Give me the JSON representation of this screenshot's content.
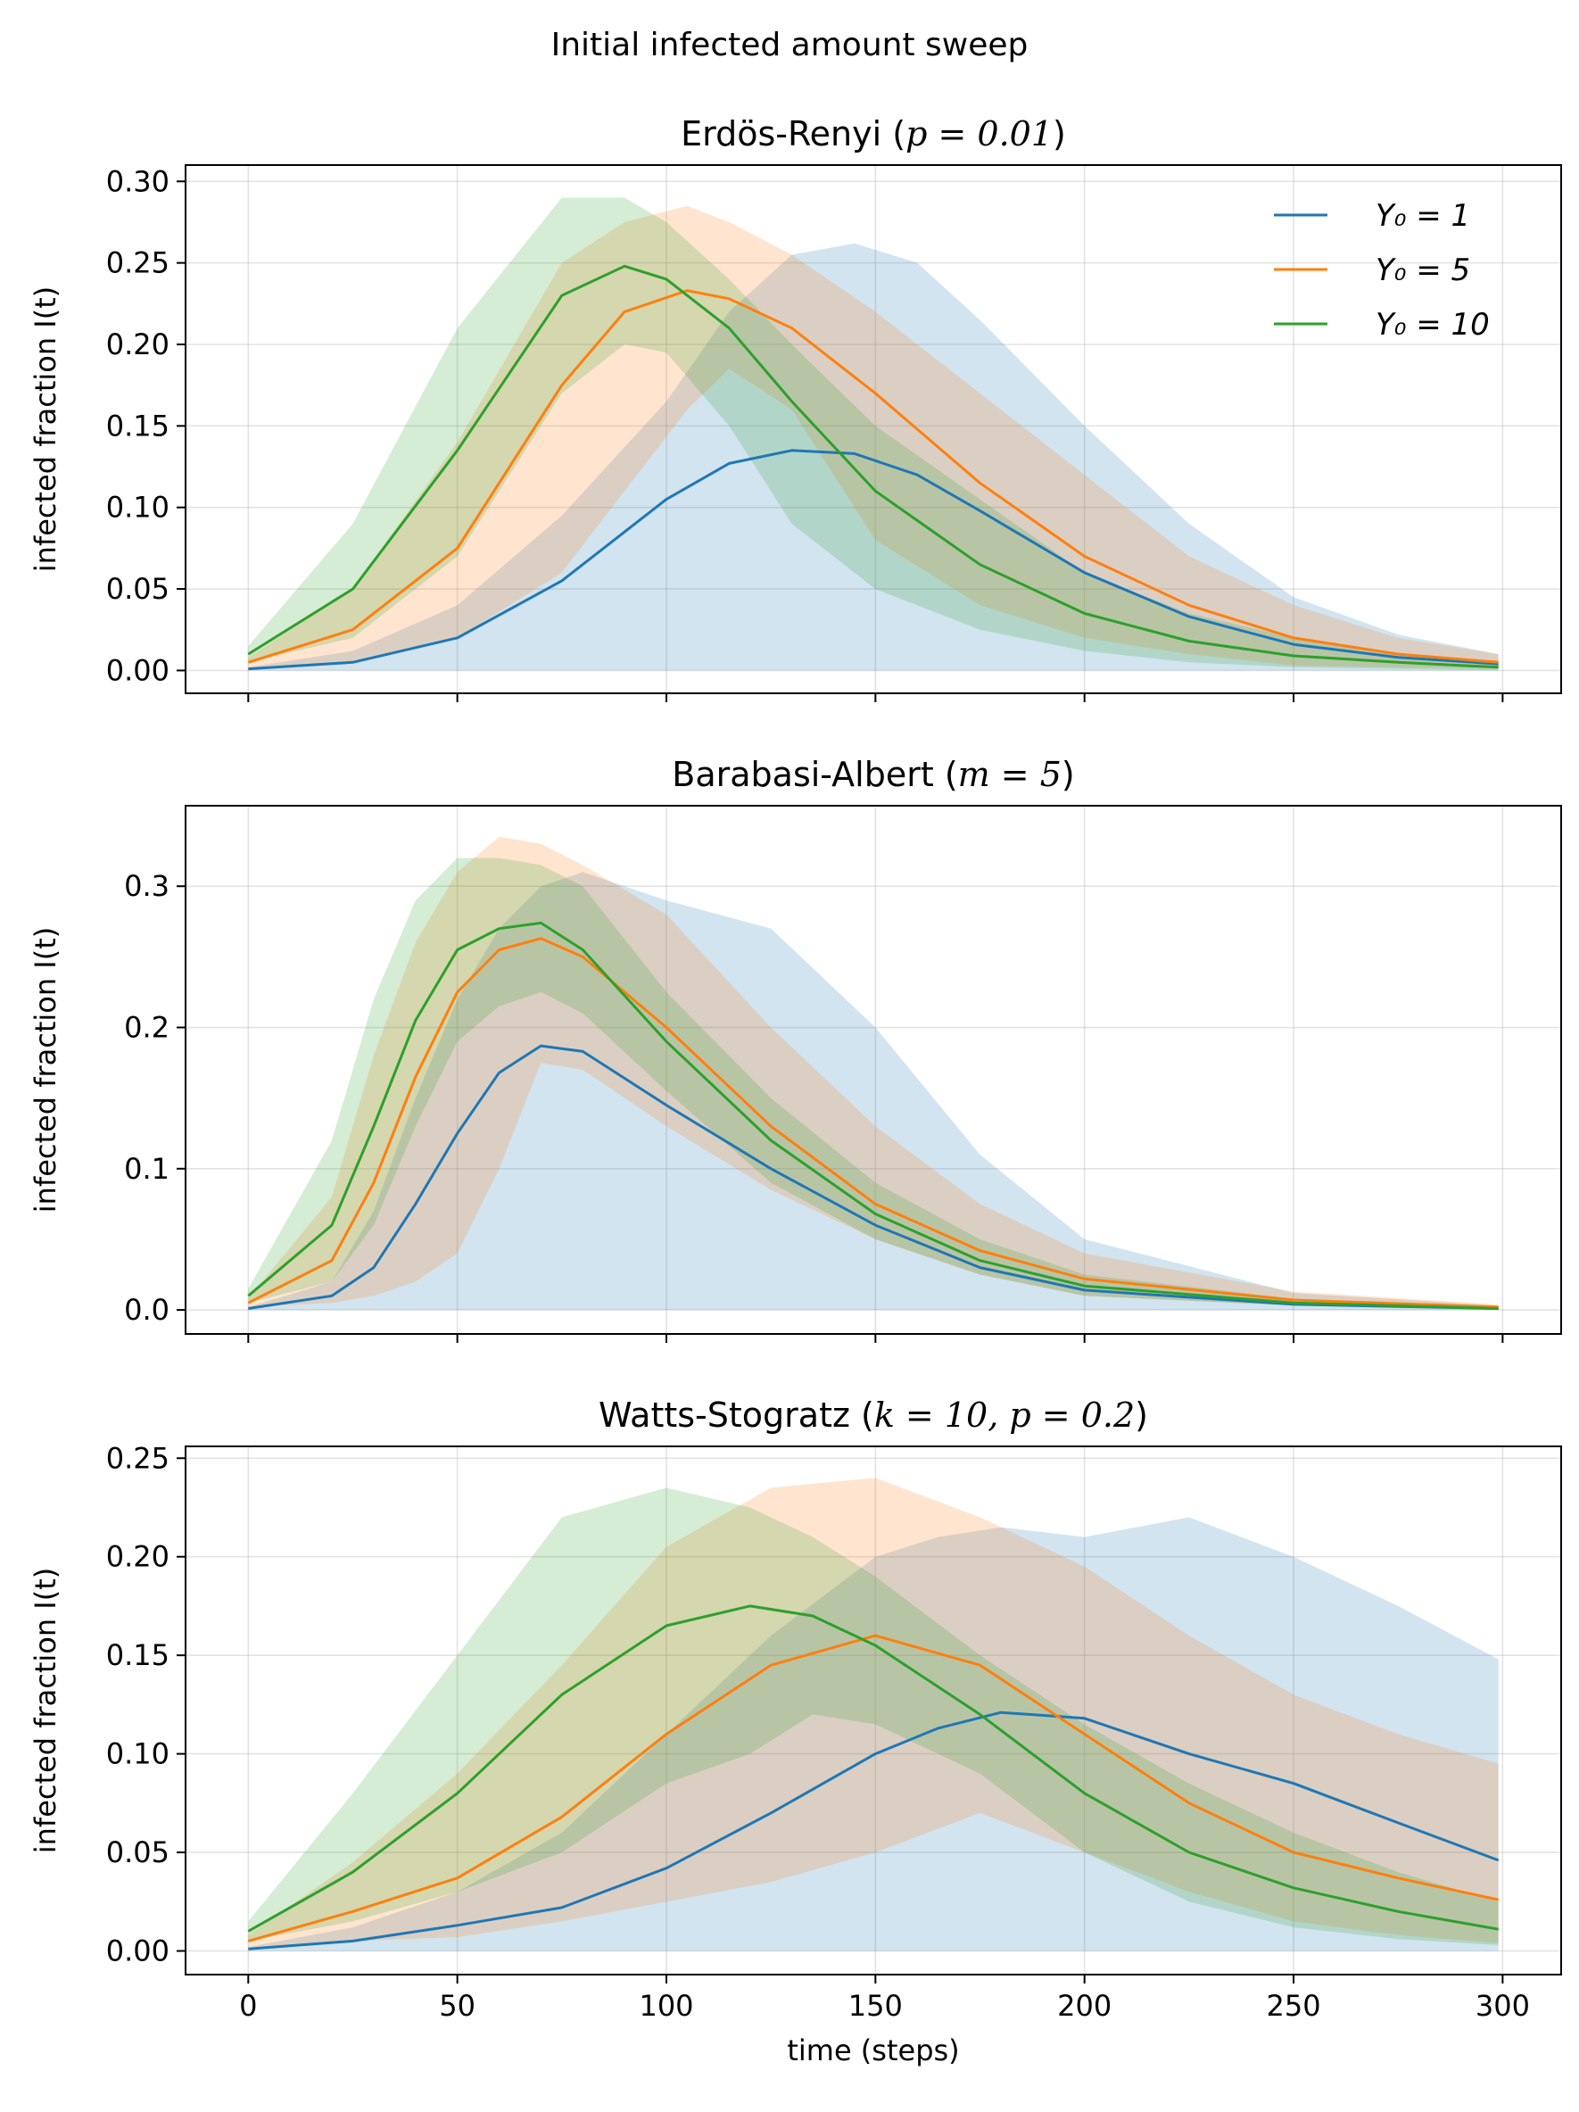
{
  "suptitle": "Initial infected amount sweep",
  "chart_data": [
    {
      "type": "line",
      "title": "Erdös-Renyi (p = 0.01)",
      "title_parts": {
        "pre": "Erdös-Renyi (",
        "math": "p = 0.01",
        "post": ")"
      },
      "xlabel": "",
      "ylabel": "infected fraction I(t)",
      "xlim": [
        -15,
        314
      ],
      "ylim": [
        -0.014,
        0.31
      ],
      "xticks": [
        0,
        50,
        100,
        150,
        200,
        250,
        300
      ],
      "xtick_labels_shown": false,
      "yticks": [
        0.0,
        0.05,
        0.1,
        0.15,
        0.2,
        0.25,
        0.3
      ],
      "ytick_labels": [
        "0.00",
        "0.05",
        "0.10",
        "0.15",
        "0.20",
        "0.25",
        "0.30"
      ],
      "grid": true,
      "legend": {
        "placement": "top-right",
        "entries": [
          "Y₀ = 1",
          "Y₀ = 5",
          "Y₀ = 10"
        ]
      },
      "series": [
        {
          "name": "Y₀ = 1",
          "color": "#1f77b4",
          "x": [
            0,
            25,
            50,
            75,
            100,
            115,
            130,
            145,
            160,
            175,
            200,
            225,
            250,
            275,
            299
          ],
          "values": [
            0.001,
            0.005,
            0.02,
            0.055,
            0.105,
            0.127,
            0.135,
            0.133,
            0.12,
            0.098,
            0.06,
            0.033,
            0.016,
            0.008,
            0.004
          ],
          "lower": [
            0.0,
            0.0,
            0.0,
            0.0,
            0.0,
            0.0,
            0.0,
            0.0,
            0.0,
            0.0,
            0.0,
            0.0,
            0.0,
            0.0,
            0.0
          ],
          "upper": [
            0.002,
            0.012,
            0.04,
            0.095,
            0.165,
            0.22,
            0.255,
            0.262,
            0.25,
            0.215,
            0.15,
            0.09,
            0.045,
            0.022,
            0.01
          ]
        },
        {
          "name": "Y₀ = 5",
          "color": "#ff7f0e",
          "x": [
            0,
            25,
            50,
            75,
            90,
            105,
            115,
            130,
            150,
            175,
            200,
            225,
            250,
            275,
            299
          ],
          "values": [
            0.005,
            0.025,
            0.075,
            0.175,
            0.22,
            0.233,
            0.228,
            0.21,
            0.17,
            0.115,
            0.07,
            0.04,
            0.02,
            0.01,
            0.005
          ],
          "lower": [
            0.002,
            0.005,
            0.02,
            0.06,
            0.11,
            0.16,
            0.185,
            0.16,
            0.08,
            0.04,
            0.02,
            0.01,
            0.003,
            0.002,
            0.001
          ],
          "upper": [
            0.008,
            0.05,
            0.14,
            0.25,
            0.275,
            0.285,
            0.275,
            0.255,
            0.22,
            0.17,
            0.12,
            0.07,
            0.04,
            0.02,
            0.01
          ]
        },
        {
          "name": "Y₀ = 10",
          "color": "#2ca02c",
          "x": [
            0,
            25,
            50,
            75,
            90,
            100,
            115,
            130,
            150,
            175,
            200,
            225,
            250,
            275,
            299
          ],
          "values": [
            0.01,
            0.05,
            0.135,
            0.23,
            0.248,
            0.24,
            0.21,
            0.165,
            0.11,
            0.065,
            0.035,
            0.018,
            0.009,
            0.005,
            0.002
          ],
          "lower": [
            0.005,
            0.02,
            0.07,
            0.17,
            0.2,
            0.195,
            0.15,
            0.09,
            0.05,
            0.025,
            0.012,
            0.005,
            0.002,
            0.001,
            0.0
          ],
          "upper": [
            0.015,
            0.09,
            0.21,
            0.29,
            0.29,
            0.275,
            0.24,
            0.2,
            0.15,
            0.105,
            0.06,
            0.035,
            0.02,
            0.01,
            0.006
          ]
        }
      ]
    },
    {
      "type": "line",
      "title": "Barabasi-Albert (m = 5)",
      "title_parts": {
        "pre": "Barabasi-Albert (",
        "math": "m = 5",
        "post": ")"
      },
      "xlabel": "",
      "ylabel": "infected fraction I(t)",
      "xlim": [
        -15,
        314
      ],
      "ylim": [
        -0.017,
        0.357
      ],
      "xticks": [
        0,
        50,
        100,
        150,
        200,
        250,
        300
      ],
      "xtick_labels_shown": false,
      "yticks": [
        0.0,
        0.1,
        0.2,
        0.3
      ],
      "ytick_labels": [
        "0.0",
        "0.1",
        "0.2",
        "0.3"
      ],
      "grid": true,
      "series": [
        {
          "name": "Y₀ = 1",
          "color": "#1f77b4",
          "x": [
            0,
            20,
            30,
            40,
            50,
            60,
            70,
            80,
            100,
            125,
            150,
            175,
            200,
            250,
            299
          ],
          "values": [
            0.001,
            0.01,
            0.03,
            0.075,
            0.125,
            0.168,
            0.187,
            0.183,
            0.145,
            0.1,
            0.06,
            0.03,
            0.014,
            0.004,
            0.001
          ],
          "lower": [
            0.0,
            0.0,
            0.0,
            0.0,
            0.0,
            0.0,
            0.0,
            0.0,
            0.0,
            0.0,
            0.0,
            0.0,
            0.0,
            0.0,
            0.0
          ],
          "upper": [
            0.002,
            0.02,
            0.07,
            0.15,
            0.22,
            0.27,
            0.3,
            0.31,
            0.29,
            0.27,
            0.2,
            0.11,
            0.05,
            0.012,
            0.003
          ]
        },
        {
          "name": "Y₀ = 5",
          "color": "#ff7f0e",
          "x": [
            0,
            20,
            30,
            40,
            50,
            60,
            70,
            80,
            100,
            125,
            150,
            175,
            200,
            250,
            299
          ],
          "values": [
            0.005,
            0.035,
            0.09,
            0.165,
            0.225,
            0.255,
            0.263,
            0.25,
            0.2,
            0.13,
            0.075,
            0.042,
            0.022,
            0.007,
            0.002
          ],
          "lower": [
            0.002,
            0.005,
            0.01,
            0.02,
            0.04,
            0.1,
            0.175,
            0.17,
            0.13,
            0.085,
            0.05,
            0.025,
            0.01,
            0.003,
            0.001
          ],
          "upper": [
            0.008,
            0.08,
            0.18,
            0.26,
            0.31,
            0.335,
            0.33,
            0.315,
            0.28,
            0.2,
            0.13,
            0.075,
            0.04,
            0.013,
            0.004
          ]
        },
        {
          "name": "Y₀ = 10",
          "color": "#2ca02c",
          "x": [
            0,
            20,
            30,
            40,
            50,
            60,
            70,
            80,
            100,
            125,
            150,
            175,
            200,
            250,
            299
          ],
          "values": [
            0.01,
            0.06,
            0.13,
            0.205,
            0.255,
            0.27,
            0.274,
            0.255,
            0.19,
            0.12,
            0.068,
            0.035,
            0.017,
            0.005,
            0.001
          ],
          "lower": [
            0.005,
            0.02,
            0.06,
            0.13,
            0.19,
            0.215,
            0.225,
            0.21,
            0.155,
            0.09,
            0.05,
            0.025,
            0.01,
            0.003,
            0.0
          ],
          "upper": [
            0.015,
            0.12,
            0.22,
            0.29,
            0.32,
            0.32,
            0.315,
            0.3,
            0.225,
            0.15,
            0.09,
            0.05,
            0.025,
            0.008,
            0.002
          ]
        }
      ]
    },
    {
      "type": "line",
      "title": "Watts-Stogratz (k = 10, p = 0.2)",
      "title_parts": {
        "pre": "Watts-Stogratz (",
        "math": "k = 10, p = 0.2",
        "post": ")"
      },
      "xlabel": "time (steps)",
      "ylabel": "infected fraction I(t)",
      "xlim": [
        -15,
        314
      ],
      "ylim": [
        -0.012,
        0.256
      ],
      "xticks": [
        0,
        50,
        100,
        150,
        200,
        250,
        300
      ],
      "xtick_labels_shown": true,
      "xtick_labels": [
        "0",
        "50",
        "100",
        "150",
        "200",
        "250",
        "300"
      ],
      "yticks": [
        0.0,
        0.05,
        0.1,
        0.15,
        0.2,
        0.25
      ],
      "ytick_labels": [
        "0.00",
        "0.05",
        "0.10",
        "0.15",
        "0.20",
        "0.25"
      ],
      "grid": true,
      "series": [
        {
          "name": "Y₀ = 1",
          "color": "#1f77b4",
          "x": [
            0,
            25,
            50,
            75,
            100,
            125,
            150,
            165,
            180,
            200,
            225,
            250,
            275,
            299
          ],
          "values": [
            0.001,
            0.005,
            0.013,
            0.022,
            0.042,
            0.07,
            0.1,
            0.113,
            0.121,
            0.118,
            0.1,
            0.085,
            0.065,
            0.046
          ],
          "lower": [
            0.0,
            0.0,
            0.0,
            0.0,
            0.0,
            0.0,
            0.0,
            0.0,
            0.0,
            0.0,
            0.0,
            0.0,
            0.0,
            0.0
          ],
          "upper": [
            0.002,
            0.012,
            0.03,
            0.06,
            0.11,
            0.16,
            0.2,
            0.21,
            0.215,
            0.21,
            0.22,
            0.2,
            0.175,
            0.148
          ]
        },
        {
          "name": "Y₀ = 5",
          "color": "#ff7f0e",
          "x": [
            0,
            25,
            50,
            75,
            100,
            125,
            150,
            175,
            200,
            225,
            250,
            275,
            299
          ],
          "values": [
            0.005,
            0.02,
            0.037,
            0.068,
            0.11,
            0.145,
            0.16,
            0.145,
            0.11,
            0.075,
            0.05,
            0.037,
            0.026
          ],
          "lower": [
            0.002,
            0.005,
            0.007,
            0.015,
            0.025,
            0.035,
            0.05,
            0.07,
            0.05,
            0.03,
            0.015,
            0.008,
            0.004
          ],
          "upper": [
            0.008,
            0.045,
            0.09,
            0.145,
            0.205,
            0.235,
            0.24,
            0.22,
            0.195,
            0.16,
            0.13,
            0.11,
            0.095
          ]
        },
        {
          "name": "Y₀ = 10",
          "color": "#2ca02c",
          "x": [
            0,
            25,
            50,
            75,
            100,
            120,
            135,
            150,
            175,
            200,
            225,
            250,
            275,
            299
          ],
          "values": [
            0.01,
            0.04,
            0.08,
            0.13,
            0.165,
            0.175,
            0.17,
            0.155,
            0.12,
            0.08,
            0.05,
            0.032,
            0.02,
            0.011
          ],
          "lower": [
            0.005,
            0.015,
            0.03,
            0.05,
            0.085,
            0.1,
            0.12,
            0.115,
            0.09,
            0.05,
            0.025,
            0.012,
            0.006,
            0.003
          ],
          "upper": [
            0.015,
            0.08,
            0.15,
            0.22,
            0.235,
            0.225,
            0.21,
            0.19,
            0.15,
            0.115,
            0.085,
            0.06,
            0.04,
            0.025
          ]
        }
      ]
    }
  ]
}
